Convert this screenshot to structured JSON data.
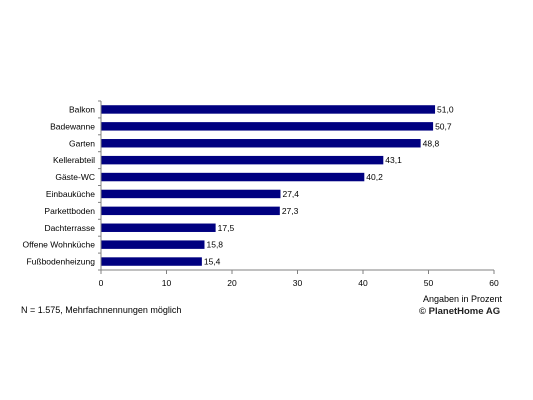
{
  "chart_data": {
    "type": "bar",
    "orientation": "horizontal",
    "categories": [
      "Balkon",
      "Badewanne",
      "Garten",
      "Kellerabteil",
      "Gäste-WC",
      "Einbauküche",
      "Parkettboden",
      "Dachterrasse",
      "Offene Wohnküche",
      "Fußbodenheizung"
    ],
    "values": [
      51.0,
      50.7,
      48.8,
      43.1,
      40.2,
      27.4,
      27.3,
      17.5,
      15.8,
      15.4
    ],
    "data_labels": [
      "51,0",
      "50,7",
      "48,8",
      "43,1",
      "40,2",
      "27,4",
      "27,3",
      "17,5",
      "15,8",
      "15,4"
    ],
    "xlim": [
      0,
      60
    ],
    "x_ticks": [
      0,
      10,
      20,
      30,
      40,
      50,
      60
    ],
    "x_unit_label": "Angaben in Prozent",
    "grid": false,
    "bar_color": "#000080",
    "axis_color": "#808080"
  },
  "footnote": "N = 1.575, Mehrfachnennungen möglich",
  "copyright": "© PlanetHome AG"
}
